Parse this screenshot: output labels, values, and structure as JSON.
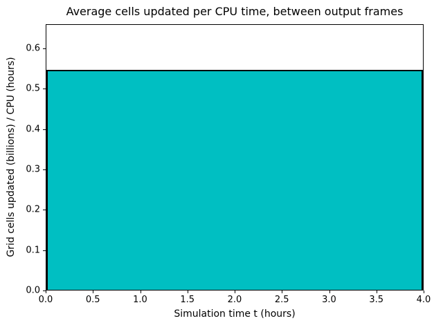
{
  "chart_data": {
    "type": "area",
    "title": "Average cells updated per CPU time, between output frames",
    "xlabel": "Simulation time t (hours)",
    "ylabel": "Grid cells updated (billions) / CPU (hours)",
    "x": [
      0.0,
      4.0
    ],
    "y": [
      0.545,
      0.545
    ],
    "series": [
      {
        "name": "average-cells-updated-per-cpu-time",
        "values": [
          0.545,
          0.545
        ]
      }
    ],
    "xlim": [
      0.0,
      4.0
    ],
    "ylim": [
      0.0,
      0.66
    ],
    "xticks": [
      0.0,
      0.5,
      1.0,
      1.5,
      2.0,
      2.5,
      3.0,
      3.5,
      4.0
    ],
    "xtick_labels": [
      "0.0",
      "0.5",
      "1.0",
      "1.5",
      "2.0",
      "2.5",
      "3.0",
      "3.5",
      "4.0"
    ],
    "yticks": [
      0.0,
      0.1,
      0.2,
      0.3,
      0.4,
      0.5,
      0.6
    ],
    "ytick_labels": [
      "0.0",
      "0.1",
      "0.2",
      "0.3",
      "0.4",
      "0.5",
      "0.6"
    ],
    "grid": false,
    "legend": null,
    "fill_color": "#00bfc2",
    "edge_color": "#000000",
    "background_color": "#ffffff"
  }
}
